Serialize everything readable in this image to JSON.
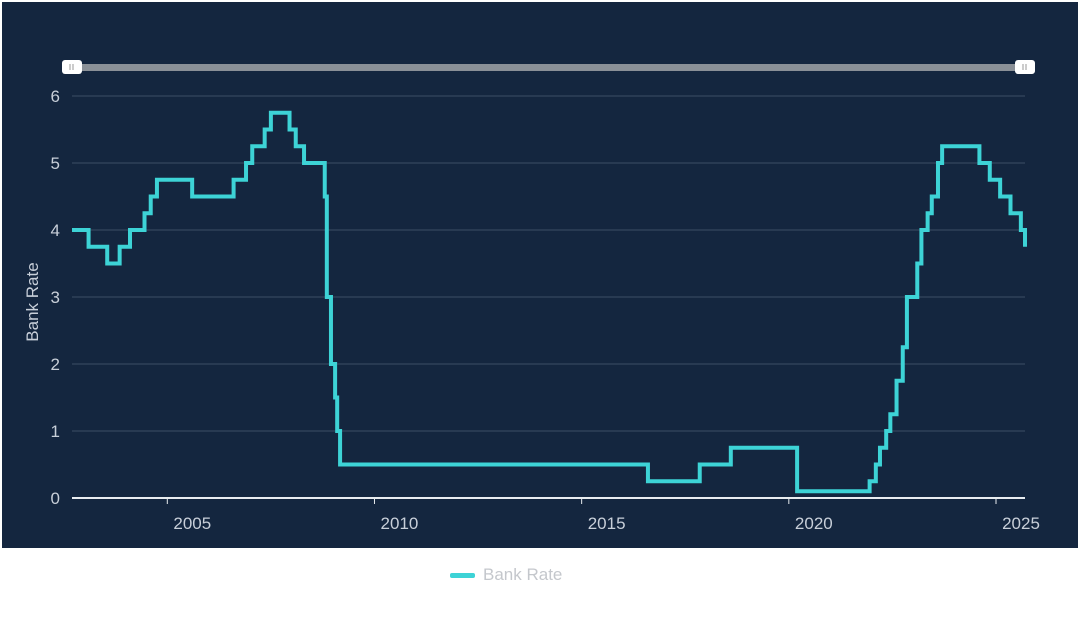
{
  "chart_data": {
    "type": "line",
    "step": true,
    "title": "",
    "xlabel": "",
    "ylabel": "Bank Rate",
    "ylim": [
      0,
      6
    ],
    "xlim": [
      2002.7,
      2025.7
    ],
    "y_ticks": [
      0,
      1,
      2,
      3,
      4,
      5,
      6
    ],
    "x_ticks": [
      2005,
      2010,
      2015,
      2020,
      2025
    ],
    "grid": true,
    "legend_position": "bottom",
    "series": [
      {
        "name": "Bank Rate",
        "color": "#3dd3d6",
        "points": [
          [
            2002.7,
            4.0
          ],
          [
            2003.1,
            3.75
          ],
          [
            2003.55,
            3.5
          ],
          [
            2003.85,
            3.75
          ],
          [
            2004.1,
            4.0
          ],
          [
            2004.45,
            4.25
          ],
          [
            2004.6,
            4.5
          ],
          [
            2004.75,
            4.75
          ],
          [
            2005.6,
            4.5
          ],
          [
            2006.6,
            4.75
          ],
          [
            2006.9,
            5.0
          ],
          [
            2007.05,
            5.25
          ],
          [
            2007.35,
            5.5
          ],
          [
            2007.5,
            5.75
          ],
          [
            2007.95,
            5.5
          ],
          [
            2008.1,
            5.25
          ],
          [
            2008.3,
            5.0
          ],
          [
            2008.8,
            4.5
          ],
          [
            2008.85,
            3.0
          ],
          [
            2008.95,
            2.0
          ],
          [
            2009.05,
            1.5
          ],
          [
            2009.1,
            1.0
          ],
          [
            2009.17,
            0.5
          ],
          [
            2016.6,
            0.25
          ],
          [
            2017.85,
            0.5
          ],
          [
            2018.6,
            0.75
          ],
          [
            2020.2,
            0.1
          ],
          [
            2021.95,
            0.25
          ],
          [
            2022.1,
            0.5
          ],
          [
            2022.2,
            0.75
          ],
          [
            2022.35,
            1.0
          ],
          [
            2022.45,
            1.25
          ],
          [
            2022.6,
            1.75
          ],
          [
            2022.75,
            2.25
          ],
          [
            2022.85,
            3.0
          ],
          [
            2023.1,
            3.5
          ],
          [
            2023.2,
            4.0
          ],
          [
            2023.35,
            4.25
          ],
          [
            2023.45,
            4.5
          ],
          [
            2023.6,
            5.0
          ],
          [
            2023.7,
            5.25
          ],
          [
            2024.6,
            5.0
          ],
          [
            2024.85,
            4.75
          ],
          [
            2025.1,
            4.5
          ],
          [
            2025.35,
            4.25
          ],
          [
            2025.6,
            4.0
          ],
          [
            2025.7,
            3.75
          ]
        ]
      }
    ]
  },
  "range_slider": {
    "start": 2002.7,
    "end": 2025.7,
    "left_handle_icon": "grip-handle-icon",
    "right_handle_icon": "grip-handle-icon"
  },
  "legend": {
    "items": [
      {
        "label": "Bank Rate",
        "color": "#3dd3d6"
      }
    ]
  },
  "colors": {
    "background": "#14263f",
    "gridline": "#3d4e66",
    "axis": "#e8ecf0",
    "text": "#c8cfd9",
    "slider_track": "#8a9097"
  }
}
